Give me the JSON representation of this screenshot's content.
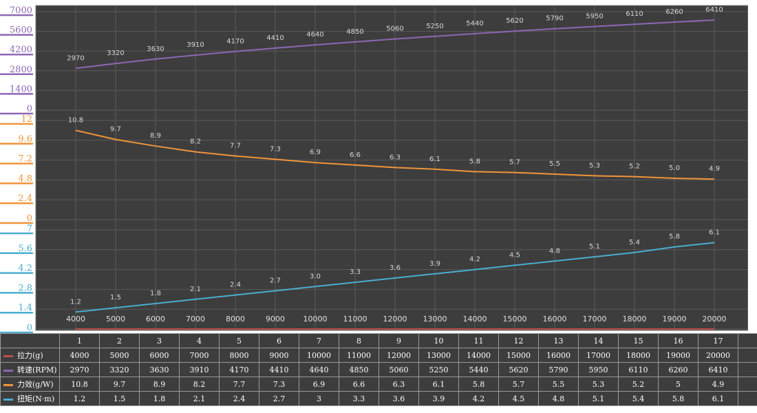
{
  "colors": {
    "background": "#3d3d3d",
    "grid": "#5a5a5a",
    "pull": "#c0504d",
    "speed": "#8e67b5",
    "efficiency": "#f0953a",
    "torque": "#4aaed0"
  },
  "chart_data": {
    "type": "line",
    "x": [
      4000,
      5000,
      6000,
      7000,
      8000,
      9000,
      10000,
      11000,
      12000,
      13000,
      14000,
      15000,
      16000,
      17000,
      18000,
      19000,
      20000
    ],
    "x_tick_labels": [
      "4000",
      "5000",
      "6000",
      "7000",
      "8000",
      "9000",
      "10000",
      "11000",
      "12000",
      "13000",
      "14000",
      "15000",
      "16000",
      "17000",
      "18000",
      "19000",
      "20000"
    ],
    "grid": true,
    "legend": "table-left",
    "panels": [
      {
        "name": "转速(RPM)",
        "color": "#8e67b5",
        "ylim": [
          0,
          7000
        ],
        "yticks": [
          "7000",
          "5600",
          "4200",
          "2800",
          "1400",
          "0"
        ],
        "values": [
          2970,
          3320,
          3630,
          3910,
          4170,
          4410,
          4640,
          4850,
          5060,
          5250,
          5440,
          5620,
          5790,
          5950,
          6110,
          6260,
          6410
        ],
        "labels": [
          "2970",
          "3320",
          "3630",
          "3910",
          "4170",
          "4410",
          "4640",
          "4850",
          "5060",
          "5250",
          "5440",
          "5620",
          "5790",
          "5950",
          "6110",
          "6260",
          "6410"
        ]
      },
      {
        "name": "力效(g/W)",
        "color": "#f0953a",
        "ylim": [
          0,
          12
        ],
        "yticks": [
          "12",
          "9.6",
          "7.2",
          "4.8",
          "2.4",
          "0"
        ],
        "values": [
          10.8,
          9.7,
          8.9,
          8.2,
          7.7,
          7.3,
          6.9,
          6.6,
          6.3,
          6.1,
          5.8,
          5.7,
          5.5,
          5.3,
          5.2,
          5.0,
          4.9
        ],
        "labels": [
          "10.8",
          "9.7",
          "8.9",
          "8.2",
          "7.7",
          "7.3",
          "6.9",
          "6.6",
          "6.3",
          "6.1",
          "5.8",
          "5.7",
          "5.5",
          "5.3",
          "5.2",
          "5.0",
          "4.9"
        ]
      },
      {
        "name": "扭矩(N·m)",
        "color": "#4aaed0",
        "ylim": [
          0,
          7
        ],
        "yticks": [
          "7",
          "5.6",
          "4.2",
          "2.8",
          "1.4",
          "0"
        ],
        "values": [
          1.2,
          1.5,
          1.8,
          2.1,
          2.4,
          2.7,
          3.0,
          3.3,
          3.6,
          3.9,
          4.2,
          4.5,
          4.8,
          5.1,
          5.4,
          5.8,
          6.1
        ],
        "labels": [
          "1.2",
          "1.5",
          "1.8",
          "2.1",
          "2.4",
          "2.7",
          "3.0",
          "3.3",
          "3.6",
          "3.9",
          "4.2",
          "4.5",
          "4.8",
          "5.1",
          "5.4",
          "5.8",
          "6.1"
        ]
      }
    ]
  },
  "table": {
    "columns": [
      "1",
      "2",
      "3",
      "4",
      "5",
      "6",
      "7",
      "8",
      "9",
      "10",
      "11",
      "12",
      "13",
      "14",
      "15",
      "16",
      "17"
    ],
    "rows": [
      {
        "key": "pull",
        "label": "拉力(g)",
        "color": "#c0504d",
        "cells": [
          "4000",
          "5000",
          "6000",
          "7000",
          "8000",
          "9000",
          "10000",
          "11000",
          "12000",
          "13000",
          "14000",
          "15000",
          "16000",
          "17000",
          "18000",
          "19000",
          "20000"
        ]
      },
      {
        "key": "speed",
        "label": "转速(RPM)",
        "color": "#8e67b5",
        "cells": [
          "2970",
          "3320",
          "3630",
          "3910",
          "4170",
          "4410",
          "4640",
          "4850",
          "5060",
          "5250",
          "5440",
          "5620",
          "5790",
          "5950",
          "6110",
          "6260",
          "6410"
        ]
      },
      {
        "key": "efficiency",
        "label": "力效(g/W)",
        "color": "#f0953a",
        "cells": [
          "10.8",
          "9.7",
          "8.9",
          "8.2",
          "7.7",
          "7.3",
          "6.9",
          "6.6",
          "6.3",
          "6.1",
          "5.8",
          "5.7",
          "5.5",
          "5.3",
          "5.2",
          "5",
          "4.9"
        ]
      },
      {
        "key": "torque",
        "label": "扭矩(N·m)",
        "color": "#4aaed0",
        "cells": [
          "1.2",
          "1.5",
          "1.8",
          "2.1",
          "2.4",
          "2.7",
          "3",
          "3.3",
          "3.6",
          "3.9",
          "4.2",
          "4.5",
          "4.8",
          "5.1",
          "5.4",
          "5.8",
          "6.1"
        ]
      }
    ]
  }
}
